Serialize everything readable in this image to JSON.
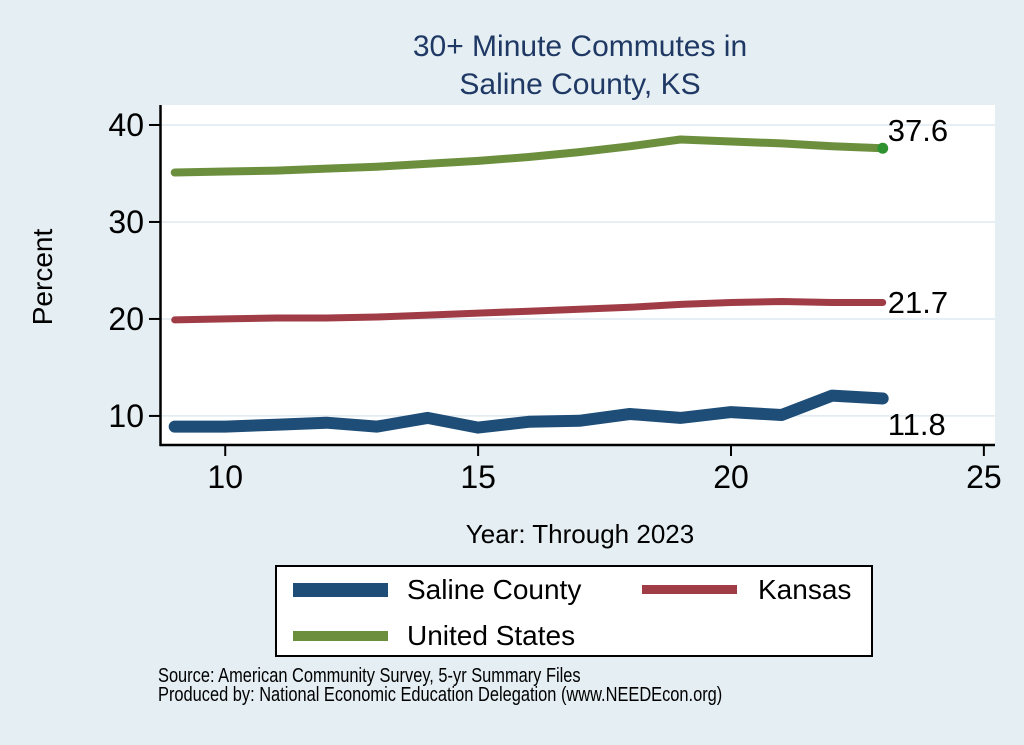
{
  "title": {
    "line1": "30+ Minute Commutes in",
    "line2": "Saline County, KS"
  },
  "y_axis_title": "Percent",
  "x_axis_note": "Year: Through 2023",
  "source": {
    "line1": "Source: American Community Survey, 5-yr Summary Files",
    "line2": "Produced by: National Economic Education Delegation (www.NEEDEcon.org)"
  },
  "colors": {
    "background": "#e4eef3",
    "plot_background": "#ffffff",
    "title": "#1f3864",
    "gridline": "#dfe9f1",
    "axis": "#000000",
    "saline_county": "#1e4d78",
    "kansas": "#a03c46",
    "united_states": "#6c8f3e",
    "us_end_dot": "#2e9231"
  },
  "legend": {
    "items": [
      {
        "label": "Saline County",
        "color_key": "saline_county"
      },
      {
        "label": "Kansas",
        "color_key": "kansas"
      },
      {
        "label": "United States",
        "color_key": "united_states"
      }
    ],
    "position": "bottom"
  },
  "chart_data": {
    "type": "line",
    "title": "30+ Minute Commutes in Saline County, KS",
    "xlabel": "Year: Through 2023",
    "ylabel": "Percent",
    "x": [
      9,
      10,
      11,
      12,
      13,
      14,
      15,
      16,
      17,
      18,
      19,
      20,
      21,
      22,
      23
    ],
    "series": [
      {
        "name": "Saline County",
        "color_key": "saline_county",
        "stroke_width": 12,
        "end_label": "11.8",
        "end_dot": false,
        "values": [
          8.9,
          8.9,
          9.1,
          9.3,
          8.9,
          9.8,
          8.8,
          9.4,
          9.5,
          10.2,
          9.8,
          10.4,
          10.1,
          12.1,
          11.8
        ]
      },
      {
        "name": "Kansas",
        "color_key": "kansas",
        "stroke_width": 7,
        "end_label": "21.7",
        "end_dot": false,
        "values": [
          19.9,
          20.0,
          20.1,
          20.1,
          20.2,
          20.4,
          20.6,
          20.8,
          21.0,
          21.2,
          21.5,
          21.7,
          21.8,
          21.7,
          21.7
        ]
      },
      {
        "name": "United States",
        "color_key": "united_states",
        "stroke_width": 8,
        "end_label": "37.6",
        "end_dot": true,
        "values": [
          35.1,
          35.2,
          35.3,
          35.5,
          35.7,
          36.0,
          36.3,
          36.7,
          37.2,
          37.8,
          38.5,
          38.3,
          38.1,
          37.8,
          37.6
        ]
      }
    ],
    "x_ticks": [
      10,
      15,
      20,
      25
    ],
    "y_ticks": [
      10,
      20,
      30,
      40
    ],
    "xlim": [
      8.73,
      25.22
    ],
    "ylim": [
      6.9,
      42.06
    ],
    "grid": "horizontal",
    "legend_position": "bottom"
  }
}
